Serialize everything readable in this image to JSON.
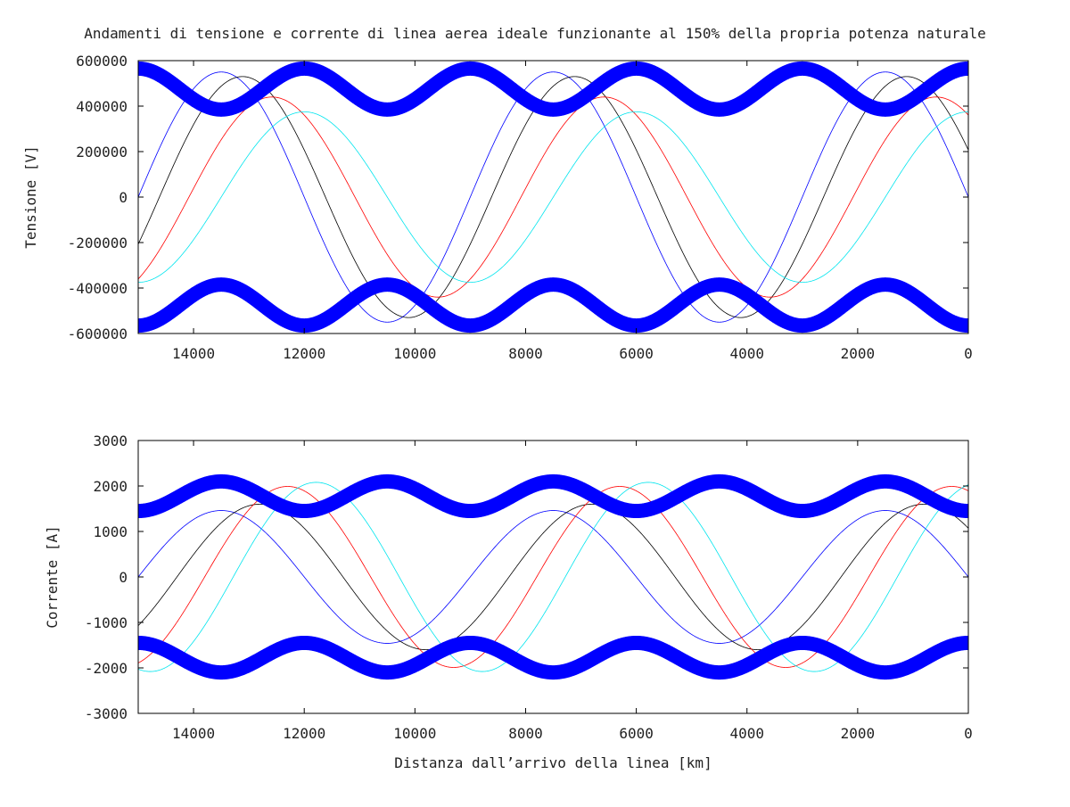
{
  "chart_data": {
    "title": "Andamenti di tensione e corrente di linea aerea ideale funzionante al 150% della propria potenza naturale",
    "charts": [
      {
        "id": "tensione",
        "type": "line",
        "xlabel": "",
        "ylabel": "Tensione [V]",
        "xlim": [
          15000,
          0
        ],
        "ylim": [
          -600000,
          600000
        ],
        "x_reversed": true,
        "grid": false,
        "x_ticks": [
          14000,
          12000,
          10000,
          8000,
          6000,
          4000,
          2000,
          0
        ],
        "x_tick_labels": [
          "14000",
          "12000",
          "10000",
          "8000",
          "6000",
          "4000",
          "2000",
          "0"
        ],
        "y_ticks": [
          600000,
          400000,
          200000,
          0,
          -200000,
          -400000,
          -600000
        ],
        "y_tick_labels": [
          "600000",
          "400000",
          "200000",
          "0",
          "-200000",
          "-400000",
          "-600000"
        ],
        "series": [
          {
            "kind": "sinusoid",
            "color": "#0000ff",
            "amplitude": 550000,
            "wavelength": 6000,
            "phase_deg": 0,
            "line_width": 0.8
          },
          {
            "kind": "sinusoid",
            "color": "#000000",
            "amplitude": 530000,
            "wavelength": 6000,
            "phase_deg": 23,
            "line_width": 0.8
          },
          {
            "kind": "sinusoid",
            "color": "#ff0000",
            "amplitude": 440000,
            "wavelength": 6000,
            "phase_deg": 55,
            "line_width": 0.8
          },
          {
            "kind": "sinusoid",
            "color": "#00e5ee",
            "amplitude": 375000,
            "wavelength": 6000,
            "phase_deg": 90,
            "line_width": 0.8
          },
          {
            "kind": "envelope",
            "color": "#0000ff",
            "center": 475000,
            "amplitude": 90000,
            "wavelength": 3000,
            "phase_deg": 90,
            "sign": 1,
            "line_width": 16
          },
          {
            "kind": "envelope",
            "color": "#0000ff",
            "center": 475000,
            "amplitude": 90000,
            "wavelength": 3000,
            "phase_deg": 90,
            "sign": -1,
            "line_width": 16
          }
        ]
      },
      {
        "id": "corrente",
        "type": "line",
        "xlabel": "Distanza dall’arrivo della linea [km]",
        "ylabel": "Corrente [A]",
        "xlim": [
          15000,
          0
        ],
        "ylim": [
          -3000,
          3000
        ],
        "x_reversed": true,
        "grid": false,
        "x_ticks": [
          14000,
          12000,
          10000,
          8000,
          6000,
          4000,
          2000,
          0
        ],
        "x_tick_labels": [
          "14000",
          "12000",
          "10000",
          "8000",
          "6000",
          "4000",
          "2000",
          "0"
        ],
        "y_ticks": [
          3000,
          2000,
          1000,
          0,
          -1000,
          -2000,
          -3000
        ],
        "y_tick_labels": [
          "3000",
          "2000",
          "1000",
          "0",
          "-1000",
          "-2000",
          "-3000"
        ],
        "series": [
          {
            "kind": "sinusoid",
            "color": "#0000ff",
            "amplitude": 1460,
            "wavelength": 6000,
            "phase_deg": 0,
            "line_width": 0.8
          },
          {
            "kind": "sinusoid",
            "color": "#000000",
            "amplitude": 1600,
            "wavelength": 6000,
            "phase_deg": 42,
            "line_width": 0.8
          },
          {
            "kind": "sinusoid",
            "color": "#ff0000",
            "amplitude": 1990,
            "wavelength": 6000,
            "phase_deg": 72,
            "line_width": 0.8
          },
          {
            "kind": "sinusoid",
            "color": "#00e5ee",
            "amplitude": 2080,
            "wavelength": 6000,
            "phase_deg": 103,
            "line_width": 0.8
          },
          {
            "kind": "envelope",
            "color": "#0000ff",
            "center": 1775,
            "amplitude": 325,
            "wavelength": 3000,
            "phase_deg": -90,
            "sign": 1,
            "line_width": 16
          },
          {
            "kind": "envelope",
            "color": "#0000ff",
            "center": 1775,
            "amplitude": 325,
            "wavelength": 3000,
            "phase_deg": -90,
            "sign": -1,
            "line_width": 16
          }
        ]
      }
    ]
  }
}
